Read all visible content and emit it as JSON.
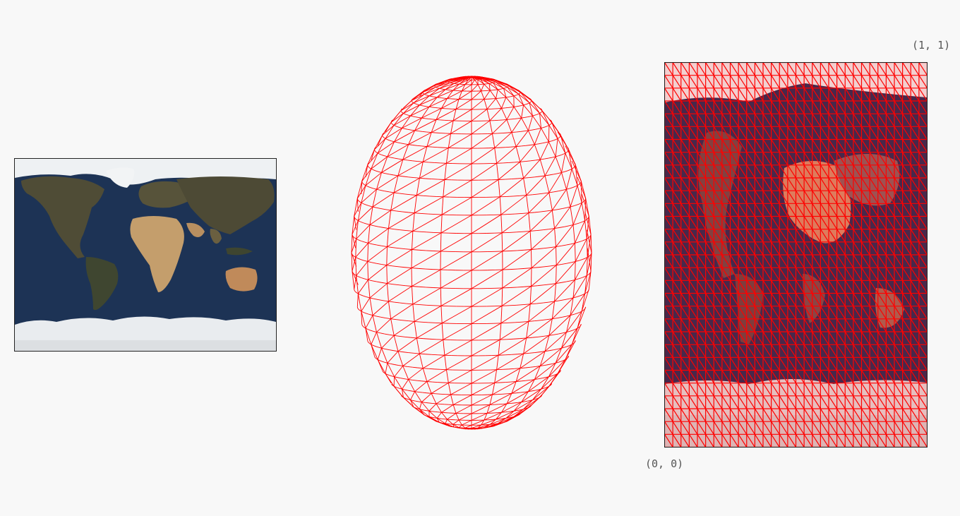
{
  "labels": {
    "uv_top_right": "(1, 1)",
    "uv_bottom_left": "(0, 0)"
  },
  "colors": {
    "background": "#f8f8f8",
    "wireframe": "#ff0000",
    "ocean": "#1d3355",
    "ice": "#e8ecef",
    "land_dark": "#4a4a36",
    "land_desert": "#c8a070",
    "frame": "#222222"
  },
  "mesh": {
    "latitude_segments": 30,
    "longitude_segments": 24
  },
  "panels": {
    "texture": "world-map-texture",
    "sphere": "uv-sphere-wireframe",
    "uv_layout": "uv-unwrap-grid"
  }
}
